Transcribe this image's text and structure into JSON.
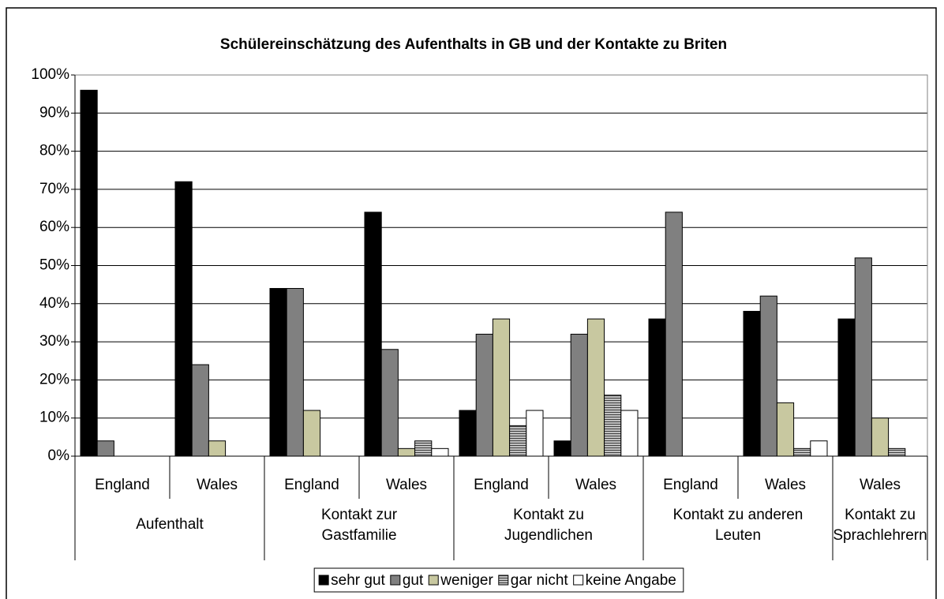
{
  "chart_data": {
    "type": "bar",
    "title": "Schülereinschätzung des Aufenthalts in GB und der Kontakte zu Briten",
    "categories": [
      "England",
      "Wales",
      "England",
      "Wales",
      "England",
      "Wales",
      "England",
      "Wales",
      "Wales"
    ],
    "groups": [
      {
        "label": [
          "Aufenthalt"
        ],
        "size": 2
      },
      {
        "label": [
          "Kontakt zur",
          "Gastfamilie"
        ],
        "size": 2
      },
      {
        "label": [
          "Kontakt zu",
          "Jugendlichen"
        ],
        "size": 2
      },
      {
        "label": [
          "Kontakt zu anderen",
          "Leuten"
        ],
        "size": 2
      },
      {
        "label": [
          "Kontakt zu",
          "Sprachlehrern"
        ],
        "size": 1
      }
    ],
    "series": [
      {
        "name": "sehr gut",
        "color": "#000000",
        "values": [
          96,
          72,
          44,
          64,
          12,
          4,
          36,
          38,
          36
        ]
      },
      {
        "name": "gut",
        "color": "#808080",
        "values": [
          4,
          24,
          44,
          28,
          32,
          32,
          64,
          42,
          52
        ]
      },
      {
        "name": "weniger",
        "color": "#c8c8a0",
        "values": [
          0,
          4,
          12,
          2,
          36,
          36,
          0,
          14,
          10
        ]
      },
      {
        "name": "gar nicht",
        "color": "#808080",
        "pattern": "horizontal-lines",
        "values": [
          0,
          0,
          0,
          4,
          8,
          16,
          0,
          2,
          2
        ]
      },
      {
        "name": "keine Angabe",
        "color": "#ffffff",
        "values": [
          0,
          0,
          0,
          2,
          12,
          12,
          0,
          4,
          0
        ]
      }
    ],
    "ylim": [
      0,
      100
    ],
    "yticks": [
      {
        "value": 0,
        "label": "0%"
      },
      {
        "value": 10,
        "label": "10%"
      },
      {
        "value": 20,
        "label": "20%"
      },
      {
        "value": 30,
        "label": "30%"
      },
      {
        "value": 40,
        "label": "40%"
      },
      {
        "value": 50,
        "label": "50%"
      },
      {
        "value": 60,
        "label": "60%"
      },
      {
        "value": 70,
        "label": "70%"
      },
      {
        "value": 80,
        "label": "80%"
      },
      {
        "value": 90,
        "label": "90%"
      },
      {
        "value": 100,
        "label": "100%"
      }
    ],
    "grid": true,
    "legend": "bottom"
  }
}
